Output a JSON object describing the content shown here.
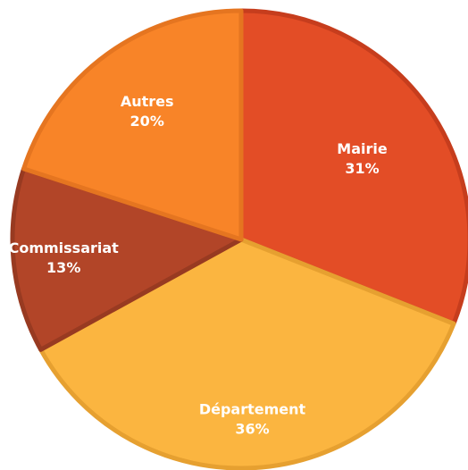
{
  "chart_data": {
    "type": "pie",
    "categories": [
      "Mairie",
      "Département",
      "Commissariat",
      "Autres"
    ],
    "values": [
      31,
      36,
      13,
      20
    ],
    "value_labels": [
      "31%",
      "36%",
      "13%",
      "20%"
    ],
    "colors": [
      "#e34d26",
      "#fbb540",
      "#b24528",
      "#f88428"
    ],
    "border_colors": [
      "#c63d1d",
      "#e6a030",
      "#983a21",
      "#e57520"
    ],
    "start_angle_deg": 0,
    "direction": "clockwise",
    "legend": "none"
  }
}
